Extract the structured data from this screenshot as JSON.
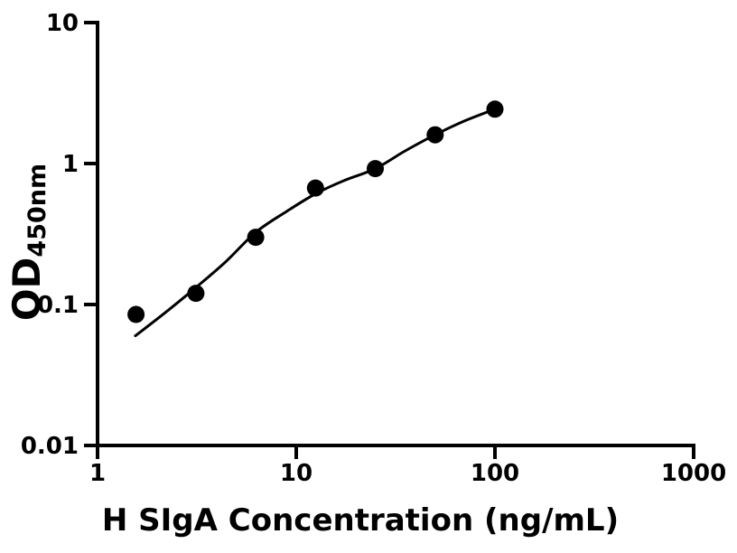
{
  "figure": {
    "background_color": "#ffffff",
    "axis_color": "#000000",
    "marker_color": "#000000",
    "curve_color": "#000000"
  },
  "chart_data": {
    "type": "scatter",
    "title": "",
    "xlabel": "H SIgA Concentration (ng/mL)",
    "ylabel": "OD",
    "ylabel_subscript": "450nm",
    "x_scale": "log10",
    "y_scale": "log10",
    "xlim": [
      1,
      1000
    ],
    "ylim": [
      0.01,
      10
    ],
    "x_ticks": [
      1,
      10,
      100,
      1000
    ],
    "x_tick_labels": [
      "1",
      "10",
      "100",
      "1000"
    ],
    "y_ticks": [
      0.01,
      0.1,
      1,
      10
    ],
    "y_tick_labels": [
      "0.01",
      "0.1",
      "1",
      "10"
    ],
    "grid": false,
    "legend": "none",
    "series": [
      {
        "name": "standard-points",
        "type": "scatter",
        "x": [
          1.5625,
          3.125,
          6.25,
          12.5,
          25,
          50,
          100
        ],
        "y": [
          0.085,
          0.12,
          0.3,
          0.67,
          0.92,
          1.6,
          2.43
        ]
      },
      {
        "name": "fitted-curve",
        "type": "line",
        "x": [
          1.55,
          2.2,
          3.125,
          4.4,
          6.25,
          9,
          12.5,
          17.5,
          25,
          35,
          50,
          70,
          100
        ],
        "y": [
          0.06,
          0.088,
          0.132,
          0.2,
          0.325,
          0.46,
          0.61,
          0.76,
          0.92,
          1.22,
          1.6,
          2.0,
          2.43
        ]
      }
    ]
  }
}
